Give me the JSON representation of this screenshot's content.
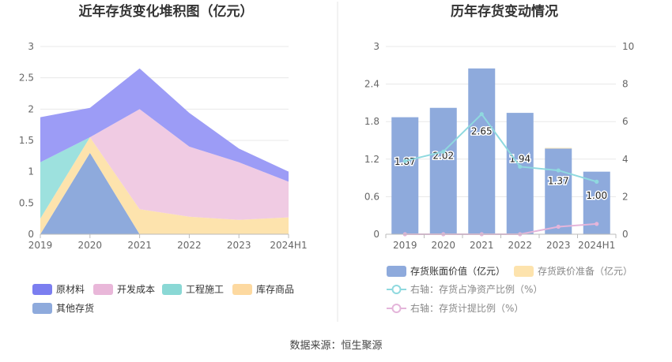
{
  "source_label": "数据来源：恒生聚源",
  "chart_data": [
    {
      "type": "area",
      "stacked": true,
      "title": "近年存货变化堆积图（亿元）",
      "categories": [
        "2019",
        "2020",
        "2021",
        "2022",
        "2023",
        "2024H1"
      ],
      "ylim": [
        0,
        3
      ],
      "yticks": [
        "0",
        "0.5",
        "1",
        "1.5",
        "2",
        "2.5",
        "3"
      ],
      "series": [
        {
          "name": "其他存货",
          "color": "#8eaadc",
          "values": [
            0,
            1.3,
            0,
            0,
            0,
            0
          ]
        },
        {
          "name": "库存商品",
          "color": "#fde3ad",
          "values": [
            0.25,
            0.25,
            0.4,
            0.28,
            0.23,
            0.27
          ]
        },
        {
          "name": "工程施工",
          "color": "#9de1de",
          "values": [
            0.9,
            0,
            0,
            0,
            0,
            0
          ]
        },
        {
          "name": "开发成本",
          "color": "#f0cbe3",
          "values": [
            0,
            0,
            1.6,
            1.12,
            0.92,
            0.57
          ]
        },
        {
          "name": "原材料",
          "color": "#9c9cf6",
          "values": [
            0.72,
            0.47,
            0.65,
            0.54,
            0.22,
            0.16
          ]
        }
      ],
      "legend": [
        {
          "name": "原材料",
          "color": "#7b7ef0"
        },
        {
          "name": "开发成本",
          "color": "#e9b7d9"
        },
        {
          "name": "工程施工",
          "color": "#8ad8d5"
        },
        {
          "name": "库存商品",
          "color": "#fdd9a0"
        },
        {
          "name": "其他存货",
          "color": "#8eaadc"
        }
      ],
      "grid": true
    },
    {
      "type": "bar",
      "title": "历年存货变动情况",
      "categories": [
        "2019",
        "2020",
        "2021",
        "2022",
        "2023",
        "2024H1"
      ],
      "ylim": [
        0,
        3
      ],
      "yticks": [
        "0",
        "0.6",
        "1.2",
        "1.8",
        "2.4",
        "3"
      ],
      "y2lim": [
        0,
        10
      ],
      "y2ticks": [
        "0",
        "2",
        "4",
        "6",
        "8",
        "10"
      ],
      "series": [
        {
          "name": "存货账面价值（亿元）",
          "type": "bar",
          "axis": "left",
          "color": "#8eaadc",
          "values": [
            1.87,
            2.02,
            2.65,
            1.94,
            1.37,
            1.0
          ],
          "labels": [
            "1.87",
            "2.02",
            "2.65",
            "1.94",
            "1.37",
            "1.00"
          ]
        },
        {
          "name": "存货跌价准备（亿元）",
          "type": "bar",
          "axis": "left",
          "color": "#fde3ad",
          "values": [
            0,
            0,
            0,
            0,
            0.01,
            0
          ]
        },
        {
          "name": "右轴：存货占净资产比例（%）",
          "type": "line",
          "axis": "right",
          "color": "#8fd9df",
          "values": [
            3.9,
            4.4,
            6.4,
            3.6,
            3.4,
            2.8
          ]
        },
        {
          "name": "右轴：存货计提比例（%）",
          "type": "line",
          "axis": "right",
          "color": "#e4b5da",
          "values": [
            0,
            0,
            0,
            0,
            0.4,
            0.55
          ]
        }
      ],
      "grid": true
    }
  ]
}
